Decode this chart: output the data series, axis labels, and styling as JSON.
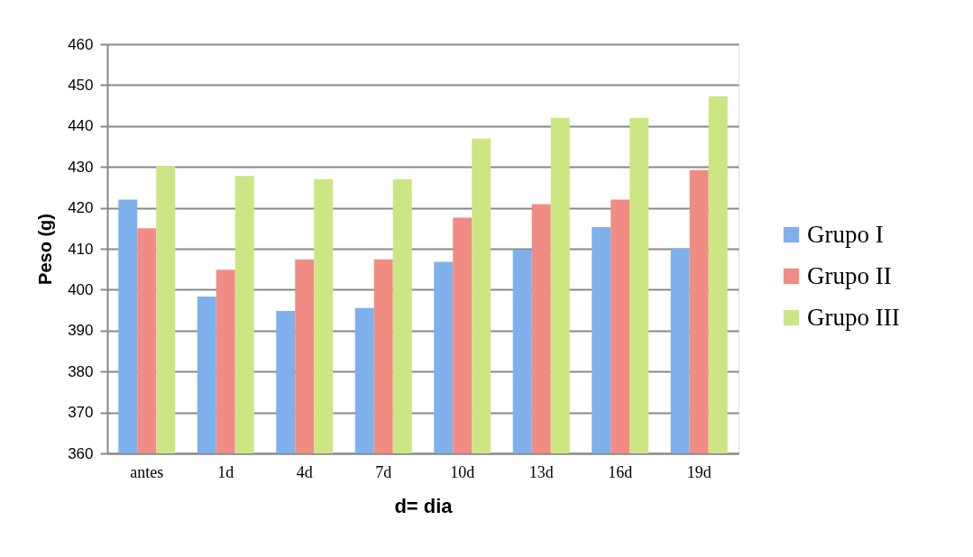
{
  "chart_data": {
    "type": "bar",
    "xlabel": "d= dia",
    "ylabel": "Peso (g)",
    "categories": [
      "antes",
      "1d",
      "4d",
      "7d",
      "10d",
      "13d",
      "16d",
      "19d"
    ],
    "series": [
      {
        "name": "Grupo I",
        "color": "#7eb1ec",
        "values": [
          422,
          398.3,
          394.8,
          395.5,
          406.8,
          409.8,
          415.3,
          410.1
        ]
      },
      {
        "name": "Grupo II",
        "color": "#f08c84",
        "values": [
          415,
          404.9,
          407.4,
          407.4,
          417.6,
          420.9,
          422,
          429.2
        ]
      },
      {
        "name": "Grupo III",
        "color": "#cde684",
        "values": [
          430.2,
          427.8,
          427,
          427,
          436.9,
          442,
          442,
          447.3
        ]
      }
    ],
    "ylim": [
      360,
      460
    ],
    "yticks": [
      360,
      370,
      380,
      390,
      400,
      410,
      420,
      430,
      440,
      450,
      460
    ],
    "grid": "y",
    "legend": "right"
  }
}
